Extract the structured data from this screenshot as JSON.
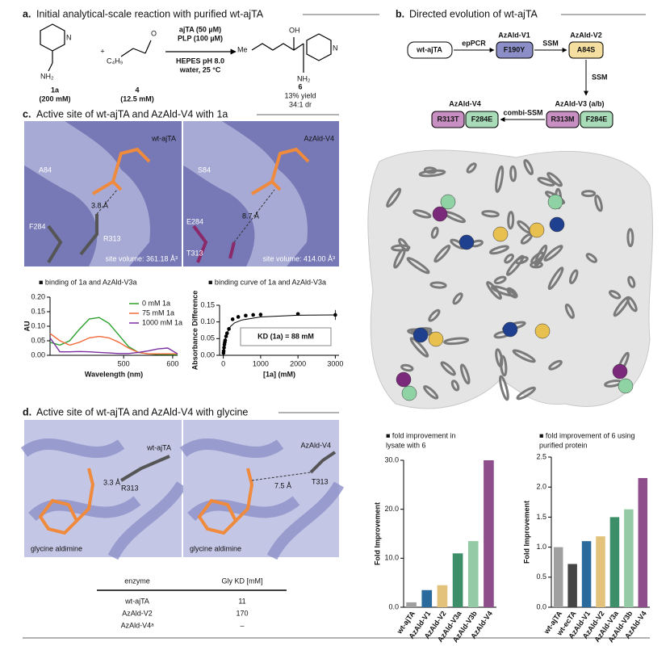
{
  "panel_a": {
    "label": "a.",
    "title": "Initial analytical-scale reaction with purified wt-ajTA",
    "reactant_1": {
      "id": "1a",
      "conc": "(200 mM)"
    },
    "reactant_2": {
      "id": "4",
      "conc": "(12.5 mM)"
    },
    "plus": "+",
    "conditions": [
      "ajTA (50 µM)",
      "PLP (100 µM)",
      "HEPES pH 8.0",
      "water, 25 °C"
    ],
    "product": {
      "id": "6",
      "yield": "13% yield",
      "dr": "34:1 dr"
    },
    "atoms": {
      "n1": "N",
      "nh2_1": "NH₂",
      "o": "O",
      "c4h9": "C₄H₉",
      "me": "Me",
      "oh": "OH",
      "n2": "N",
      "nh2_2": "NH₂"
    }
  },
  "panel_b": {
    "label": "b.",
    "title": "Directed evolution of wt-ajTA",
    "start": "wt-ajTA",
    "steps": [
      {
        "method": "epPCR",
        "variant": "AzAld-V1",
        "mutations": [
          "F190Y"
        ]
      },
      {
        "method": "SSM",
        "variant": "AzAld-V2",
        "mutations": [
          "A84S"
        ]
      },
      {
        "method": "SSM",
        "variant": "AzAld-V3 (a/b)",
        "mutations": [
          "R313M",
          "F284E"
        ]
      },
      {
        "method": "combi-SSM",
        "variant": "AzAld-V4",
        "mutations": [
          "R313T",
          "F284E"
        ]
      }
    ]
  },
  "panel_c": {
    "label": "c.",
    "title": "Active site of wt-ajTA and AzAld-V4 with 1a",
    "left": {
      "name": "wt-ajTA",
      "residues": [
        "A84",
        "F284",
        "R313"
      ],
      "distance": "3.8 Å",
      "volume": "site volume: 361.18 Å³"
    },
    "right": {
      "name": "AzAld-V4",
      "residues": [
        "S84",
        "E284",
        "T313"
      ],
      "distance": "8.7 Å",
      "volume": "site volume: 414.00 Å³"
    }
  },
  "panel_d": {
    "label": "d.",
    "title": "Active site of wt-ajTA and AzAld-V4 with glycine",
    "left": {
      "name": "wt-ajTA",
      "residue": "R313",
      "distance": "3.3 Å",
      "ligand": "glycine aldimine"
    },
    "right": {
      "name": "AzAld-V4",
      "residue": "T313",
      "distance": "7.5 Å",
      "ligand": "glycine aldimine"
    },
    "table": {
      "header": [
        "enzyme",
        "Gly KD [mM]"
      ],
      "rows": [
        [
          "wt-ajTA",
          "11"
        ],
        [
          "AzAld-V2",
          "170"
        ],
        [
          "AzAld-V4ᵃ",
          "–"
        ]
      ]
    }
  },
  "chart_data": [
    {
      "type": "line",
      "title": [
        "■ binding of 1a and AzAld-V3a"
      ],
      "x_label": "Wavelength (nm)",
      "y_label": "AU",
      "x": [
        350,
        370,
        390,
        410,
        430,
        450,
        470,
        490,
        510,
        530,
        550,
        570,
        590,
        610
      ],
      "xlim": [
        350,
        610
      ],
      "xticks": [
        500,
        600
      ],
      "ylim": [
        0,
        0.2
      ],
      "yticks": [
        {
          "value": 0,
          "label": "0.00"
        },
        {
          "value": 0.05,
          "label": "0.05"
        },
        {
          "value": 0.1,
          "label": "0.10"
        },
        {
          "value": 0.15,
          "label": "0.15"
        },
        {
          "value": 0.2,
          "label": "0.20"
        }
      ],
      "legend": "upper right",
      "series": [
        {
          "name": "0 mM 1a",
          "color": "#2ca02c",
          "values": [
            0.045,
            0.035,
            0.05,
            0.09,
            0.125,
            0.13,
            0.11,
            0.07,
            0.03,
            0.01,
            0.005,
            0.003,
            0.003,
            0.002
          ]
        },
        {
          "name": "75 mM 1a",
          "color": "#f36c3d",
          "values": [
            0.075,
            0.05,
            0.035,
            0.045,
            0.06,
            0.065,
            0.06,
            0.045,
            0.025,
            0.01,
            0.005,
            0.005,
            0.005,
            0.005
          ]
        },
        {
          "name": "1000 mM 1a",
          "color": "#7b2fa0",
          "values": [
            0.06,
            0.012,
            0.012,
            0.013,
            0.012,
            0.01,
            0.008,
            0.006,
            0.006,
            0.01,
            0.015,
            0.022,
            0.025,
            0.005
          ]
        }
      ]
    },
    {
      "type": "scatter",
      "title": [
        "■ binding curve of 1a and AzAld-V3a"
      ],
      "x_label": "[1a] (mM)",
      "y_label": "Absorbance Difference",
      "annotation": "KD (1a) = 88 mM",
      "color": "#000000",
      "x": [
        5,
        10,
        20,
        30,
        40,
        50,
        75,
        100,
        150,
        250,
        400,
        600,
        800,
        1000,
        2000,
        3000
      ],
      "values": [
        0.007,
        0.013,
        0.023,
        0.032,
        0.039,
        0.045,
        0.057,
        0.066,
        0.079,
        0.108,
        0.115,
        0.119,
        0.121,
        0.122,
        0.124,
        0.121
      ],
      "errors": [
        0.002,
        0.002,
        0.002,
        0.002,
        0.002,
        0.002,
        0.002,
        0.002,
        0.003,
        0.004,
        0.002,
        0.002,
        0.002,
        0.002,
        0.003,
        0.015
      ],
      "fit": {
        "x": [
          0,
          25,
          50,
          100,
          150,
          200,
          300,
          500,
          1000,
          2000,
          3000
        ],
        "values": [
          0,
          0.028,
          0.045,
          0.066,
          0.079,
          0.087,
          0.097,
          0.106,
          0.115,
          0.12,
          0.121
        ]
      },
      "xlim": [
        -100,
        3100
      ],
      "xticks": [
        0,
        1000,
        2000,
        3000
      ],
      "ylim": [
        0,
        0.15
      ],
      "yticks": [
        {
          "value": 0,
          "label": "0.00"
        },
        {
          "value": 0.05,
          "label": "0.05"
        },
        {
          "value": 0.1,
          "label": "0.10"
        },
        {
          "value": 0.15,
          "label": "0.15"
        }
      ]
    },
    {
      "type": "bar",
      "title": [
        "■ fold improvement in",
        "lysate with 6"
      ],
      "y_label": "Fold Improvement",
      "categories": [
        "wt-ajTA",
        "AzAld-V1",
        "AzAld-V2",
        "AzAld-V3a",
        "AzAld-V3b",
        "AzAld-V4"
      ],
      "values": [
        1,
        3.5,
        4.5,
        11,
        13.5,
        30
      ],
      "colors": [
        "#a0a0a0",
        "#2a6a9c",
        "#e3c27c",
        "#3d8f6a",
        "#94cba6",
        "#8e4e8c"
      ],
      "ylim": [
        0,
        30
      ],
      "yticks": [
        {
          "value": 0,
          "label": "0.0"
        },
        {
          "value": 10,
          "label": "10.0"
        },
        {
          "value": 20,
          "label": "20.0"
        },
        {
          "value": 30,
          "label": "30.0"
        }
      ]
    },
    {
      "type": "bar",
      "title": [
        "■ fold improvement of 6 using",
        "purified protein"
      ],
      "y_label": "Fold Improvement",
      "categories": [
        "wt-ajTA",
        "wt-ecTA",
        "AzAld-V1",
        "AzAld-V2",
        "AzAld-V3a",
        "AzAld-V3b",
        "AzAld-V4"
      ],
      "values": [
        1.0,
        0.72,
        1.1,
        1.18,
        1.5,
        1.63,
        2.15
      ],
      "colors": [
        "#a0a0a0",
        "#454545",
        "#2a6a9c",
        "#e3c27c",
        "#3d8f6a",
        "#94cba6",
        "#8e4e8c"
      ],
      "ylim": [
        0,
        2.5
      ],
      "yticks": [
        {
          "value": 0,
          "label": "0.0"
        },
        {
          "value": 0.5,
          "label": "0.5"
        },
        {
          "value": 1,
          "label": "1.0"
        },
        {
          "value": 1.5,
          "label": "1.5"
        },
        {
          "value": 2,
          "label": "2.0"
        },
        {
          "value": 2.5,
          "label": "2.5"
        }
      ]
    }
  ]
}
